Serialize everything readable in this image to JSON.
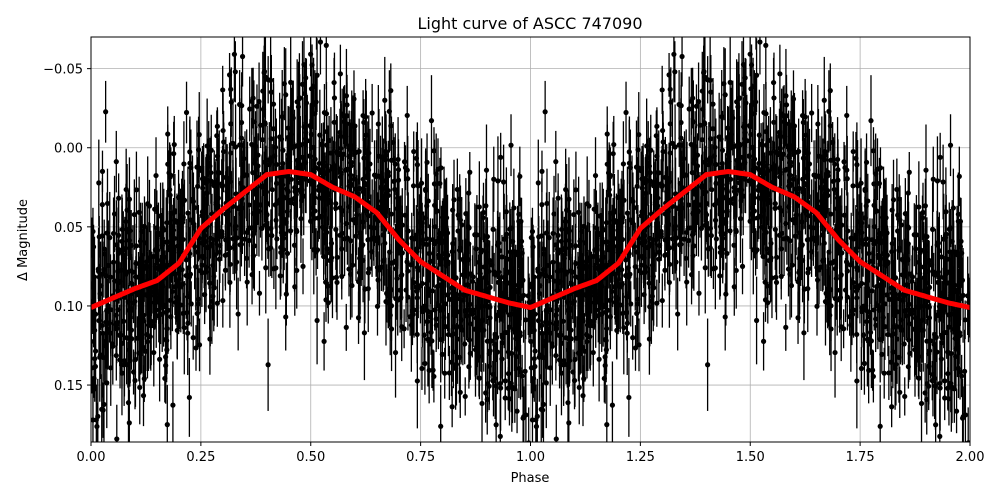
{
  "chart_data": {
    "type": "scatter",
    "title": "Light curve of ASCC 747090",
    "xlabel": "Phase",
    "ylabel": "Δ Magnitude",
    "xlim": [
      0,
      2
    ],
    "ylim": [
      0.186,
      -0.07
    ],
    "y_inverted": true,
    "grid": true,
    "x_ticks": [
      "0.00",
      "0.25",
      "0.50",
      "0.75",
      "1.00",
      "1.25",
      "1.50",
      "1.75",
      "2.00"
    ],
    "x_tick_values": [
      0,
      0.25,
      0.5,
      0.75,
      1.0,
      1.25,
      1.5,
      1.75,
      2.0
    ],
    "y_ticks": [
      "−0.05",
      "0.00",
      "0.05",
      "0.10",
      "0.15"
    ],
    "y_tick_values": [
      -0.05,
      0,
      0.05,
      0.1,
      0.15
    ],
    "series": [
      {
        "kind": "errorbar-points",
        "color": "#000000",
        "period_repeated": true,
        "scatter_sigma": 0.04,
        "typical_error": 0.02
      },
      {
        "kind": "binned-line",
        "color": "#ff0000",
        "x": [
          0,
          0.05,
          0.1,
          0.15,
          0.2,
          0.25,
          0.3,
          0.35,
          0.4,
          0.45,
          0.5,
          0.55,
          0.6,
          0.65,
          0.7,
          0.75,
          0.8,
          0.85,
          0.9,
          0.95,
          1.0
        ],
        "y": [
          0.101,
          0.095,
          0.089,
          0.084,
          0.073,
          0.051,
          0.039,
          0.028,
          0.017,
          0.015,
          0.017,
          0.025,
          0.031,
          0.041,
          0.058,
          0.072,
          0.081,
          0.09,
          0.094,
          0.098,
          0.101
        ]
      }
    ]
  }
}
